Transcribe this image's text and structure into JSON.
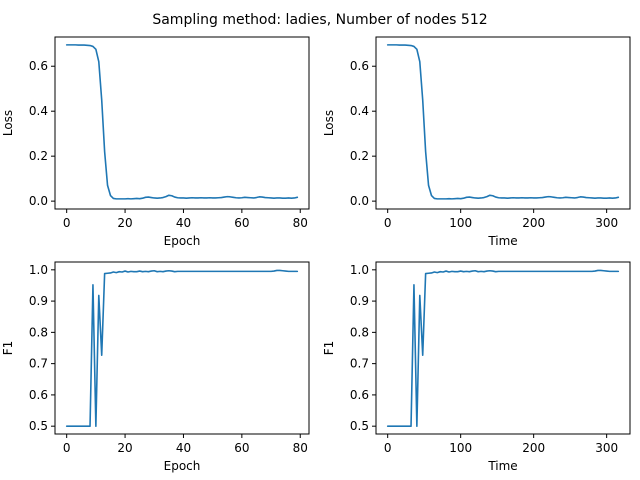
{
  "title": "Sampling method: ladies, Number of nodes 512",
  "colors": {
    "series": "#1f77b4"
  },
  "chart_data": [
    {
      "type": "line",
      "xlabel": "Epoch",
      "ylabel": "Loss",
      "xlim": [
        -4,
        83
      ],
      "ylim": [
        -0.035,
        0.73
      ],
      "xticks": [
        0,
        20,
        40,
        60,
        80
      ],
      "yticks": [
        0.0,
        0.2,
        0.4,
        0.6
      ],
      "ytick_decimals": 1,
      "grid": false,
      "series": [
        {
          "x": [
            0,
            1,
            2,
            3,
            4,
            5,
            6,
            7,
            8,
            9,
            10,
            11,
            12,
            13,
            14,
            15,
            16,
            17,
            18,
            19,
            20,
            21,
            22,
            23,
            24,
            25,
            26,
            27,
            28,
            29,
            30,
            31,
            32,
            33,
            34,
            35,
            36,
            37,
            38,
            39,
            40,
            41,
            42,
            43,
            44,
            45,
            46,
            47,
            48,
            49,
            50,
            51,
            52,
            53,
            54,
            55,
            56,
            57,
            58,
            59,
            60,
            61,
            62,
            63,
            64,
            65,
            66,
            67,
            68,
            69,
            70,
            71,
            72,
            73,
            74,
            75,
            76,
            77,
            78,
            79
          ],
          "y": [
            0.695,
            0.695,
            0.695,
            0.695,
            0.694,
            0.694,
            0.694,
            0.693,
            0.692,
            0.688,
            0.675,
            0.62,
            0.45,
            0.22,
            0.07,
            0.025,
            0.012,
            0.01,
            0.01,
            0.01,
            0.01,
            0.011,
            0.01,
            0.011,
            0.012,
            0.011,
            0.013,
            0.017,
            0.018,
            0.016,
            0.014,
            0.013,
            0.014,
            0.016,
            0.02,
            0.026,
            0.024,
            0.018,
            0.015,
            0.014,
            0.014,
            0.013,
            0.014,
            0.015,
            0.014,
            0.014,
            0.015,
            0.014,
            0.014,
            0.015,
            0.014,
            0.014,
            0.015,
            0.016,
            0.018,
            0.02,
            0.019,
            0.017,
            0.015,
            0.014,
            0.015,
            0.017,
            0.016,
            0.015,
            0.014,
            0.016,
            0.019,
            0.018,
            0.016,
            0.015,
            0.014,
            0.013,
            0.014,
            0.014,
            0.013,
            0.013,
            0.014,
            0.013,
            0.014,
            0.017
          ]
        }
      ]
    },
    {
      "type": "line",
      "xlabel": "Time",
      "ylabel": "Loss",
      "xlim": [
        -16,
        332
      ],
      "ylim": [
        -0.035,
        0.73
      ],
      "xticks": [
        0,
        100,
        200,
        300
      ],
      "yticks": [
        0.0,
        0.2,
        0.4,
        0.6
      ],
      "ytick_decimals": 1,
      "grid": false,
      "series": [
        {
          "x": [
            0,
            4,
            8,
            12,
            16,
            20,
            24,
            28,
            32,
            36,
            40,
            44,
            48,
            52,
            56,
            60,
            64,
            68,
            72,
            76,
            80,
            84,
            88,
            92,
            96,
            100,
            104,
            108,
            112,
            116,
            120,
            124,
            128,
            132,
            136,
            140,
            144,
            148,
            152,
            156,
            160,
            164,
            168,
            172,
            176,
            180,
            184,
            188,
            192,
            196,
            200,
            204,
            208,
            212,
            216,
            220,
            224,
            228,
            232,
            236,
            240,
            244,
            248,
            252,
            256,
            260,
            264,
            268,
            272,
            276,
            280,
            284,
            288,
            292,
            296,
            300,
            304,
            308,
            312,
            316
          ],
          "y": [
            0.695,
            0.695,
            0.695,
            0.695,
            0.694,
            0.694,
            0.694,
            0.693,
            0.692,
            0.688,
            0.675,
            0.62,
            0.45,
            0.22,
            0.07,
            0.025,
            0.012,
            0.01,
            0.01,
            0.01,
            0.01,
            0.011,
            0.01,
            0.011,
            0.012,
            0.011,
            0.013,
            0.017,
            0.018,
            0.016,
            0.014,
            0.013,
            0.014,
            0.016,
            0.02,
            0.026,
            0.024,
            0.018,
            0.015,
            0.014,
            0.014,
            0.013,
            0.014,
            0.015,
            0.014,
            0.014,
            0.015,
            0.014,
            0.014,
            0.015,
            0.014,
            0.014,
            0.015,
            0.016,
            0.018,
            0.02,
            0.019,
            0.017,
            0.015,
            0.014,
            0.015,
            0.017,
            0.016,
            0.015,
            0.014,
            0.016,
            0.019,
            0.018,
            0.016,
            0.015,
            0.014,
            0.013,
            0.014,
            0.014,
            0.013,
            0.013,
            0.014,
            0.013,
            0.014,
            0.017
          ]
        }
      ]
    },
    {
      "type": "line",
      "xlabel": "Epoch",
      "ylabel": "F1",
      "xlim": [
        -4,
        83
      ],
      "ylim": [
        0.475,
        1.025
      ],
      "xticks": [
        0,
        20,
        40,
        60,
        80
      ],
      "yticks": [
        0.5,
        0.6,
        0.7,
        0.8,
        0.9,
        1.0
      ],
      "ytick_decimals": 1,
      "grid": false,
      "series": [
        {
          "x": [
            0,
            1,
            2,
            3,
            4,
            5,
            6,
            7,
            8,
            9,
            10,
            11,
            12,
            13,
            14,
            15,
            16,
            17,
            18,
            19,
            20,
            21,
            22,
            23,
            24,
            25,
            26,
            27,
            28,
            29,
            30,
            31,
            32,
            33,
            34,
            35,
            36,
            37,
            38,
            39,
            40,
            41,
            42,
            43,
            44,
            45,
            46,
            47,
            48,
            49,
            50,
            51,
            52,
            53,
            54,
            55,
            56,
            57,
            58,
            59,
            60,
            61,
            62,
            63,
            64,
            65,
            66,
            67,
            68,
            69,
            70,
            71,
            72,
            73,
            74,
            75,
            76,
            77,
            78,
            79
          ],
          "y": [
            0.5,
            0.5,
            0.5,
            0.5,
            0.5,
            0.5,
            0.5,
            0.5,
            0.5,
            0.952,
            0.5,
            0.918,
            0.727,
            0.988,
            0.989,
            0.99,
            0.993,
            0.991,
            0.994,
            0.993,
            0.996,
            0.993,
            0.995,
            0.994,
            0.994,
            0.996,
            0.994,
            0.995,
            0.994,
            0.996,
            0.997,
            0.994,
            0.995,
            0.994,
            0.996,
            0.997,
            0.996,
            0.994,
            0.995,
            0.995,
            0.995,
            0.995,
            0.995,
            0.995,
            0.995,
            0.995,
            0.995,
            0.995,
            0.995,
            0.995,
            0.995,
            0.995,
            0.995,
            0.995,
            0.995,
            0.995,
            0.995,
            0.995,
            0.995,
            0.995,
            0.995,
            0.995,
            0.995,
            0.995,
            0.995,
            0.995,
            0.995,
            0.995,
            0.995,
            0.995,
            0.995,
            0.996,
            0.998,
            0.998,
            0.997,
            0.996,
            0.995,
            0.995,
            0.995,
            0.995
          ]
        }
      ]
    },
    {
      "type": "line",
      "xlabel": "Time",
      "ylabel": "F1",
      "xlim": [
        -16,
        332
      ],
      "ylim": [
        0.475,
        1.025
      ],
      "xticks": [
        0,
        100,
        200,
        300
      ],
      "yticks": [
        0.5,
        0.6,
        0.7,
        0.8,
        0.9,
        1.0
      ],
      "ytick_decimals": 1,
      "grid": false,
      "series": [
        {
          "x": [
            0,
            4,
            8,
            12,
            16,
            20,
            24,
            28,
            32,
            36,
            40,
            44,
            48,
            52,
            56,
            60,
            64,
            68,
            72,
            76,
            80,
            84,
            88,
            92,
            96,
            100,
            104,
            108,
            112,
            116,
            120,
            124,
            128,
            132,
            136,
            140,
            144,
            148,
            152,
            156,
            160,
            164,
            168,
            172,
            176,
            180,
            184,
            188,
            192,
            196,
            200,
            204,
            208,
            212,
            216,
            220,
            224,
            228,
            232,
            236,
            240,
            244,
            248,
            252,
            256,
            260,
            264,
            268,
            272,
            276,
            280,
            284,
            288,
            292,
            296,
            300,
            304,
            308,
            312,
            316
          ],
          "y": [
            0.5,
            0.5,
            0.5,
            0.5,
            0.5,
            0.5,
            0.5,
            0.5,
            0.5,
            0.952,
            0.5,
            0.918,
            0.727,
            0.988,
            0.989,
            0.99,
            0.993,
            0.991,
            0.994,
            0.993,
            0.996,
            0.993,
            0.995,
            0.994,
            0.994,
            0.996,
            0.994,
            0.995,
            0.994,
            0.996,
            0.997,
            0.994,
            0.995,
            0.994,
            0.996,
            0.997,
            0.996,
            0.994,
            0.995,
            0.995,
            0.995,
            0.995,
            0.995,
            0.995,
            0.995,
            0.995,
            0.995,
            0.995,
            0.995,
            0.995,
            0.995,
            0.995,
            0.995,
            0.995,
            0.995,
            0.995,
            0.995,
            0.995,
            0.995,
            0.995,
            0.995,
            0.995,
            0.995,
            0.995,
            0.995,
            0.995,
            0.995,
            0.995,
            0.995,
            0.995,
            0.995,
            0.996,
            0.998,
            0.998,
            0.997,
            0.996,
            0.995,
            0.995,
            0.995,
            0.995
          ]
        }
      ]
    }
  ]
}
